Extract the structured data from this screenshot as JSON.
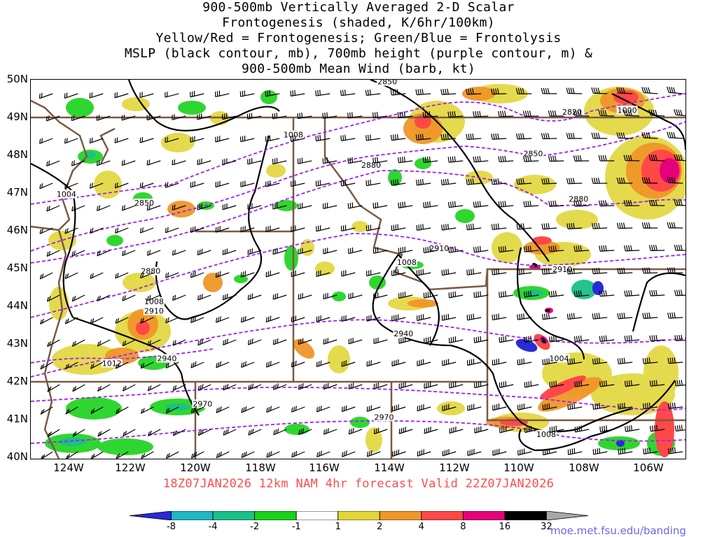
{
  "title_lines": [
    "900-500mb Vertically Averaged 2-D Scalar",
    "Frontogenesis (shaded, K/6hr/100km)",
    "Yellow/Red = Frontogenesis;  Green/Blue = Frontolysis",
    "MSLP (black contour, mb), 700mb height (purple contour, m) &",
    "900-500mb Mean Wind (barb, kt)"
  ],
  "valid_line": "18Z07JAN2026 12km NAM 4hr forecast Valid 22Z07JAN2026",
  "credit": "moe.met.fsu.edu/banding",
  "lat_labels": [
    "50N",
    "49N",
    "48N",
    "47N",
    "46N",
    "45N",
    "44N",
    "43N",
    "42N",
    "41N",
    "40N"
  ],
  "lon_labels": [
    "124W",
    "122W",
    "120W",
    "118W",
    "116W",
    "114W",
    "112W",
    "110W",
    "108W",
    "106W"
  ],
  "map_extent": {
    "lon_min": -125.2,
    "lon_max": -105.0,
    "lat_min": 40,
    "lat_max": 50
  },
  "colorbar": {
    "labels": [
      "-8",
      "-4",
      "-2",
      "-1",
      "1",
      "2",
      "4",
      "8",
      "16",
      "32"
    ],
    "colors": [
      "#2a2ad8",
      "#1fb8c4",
      "#19c08a",
      "#1ad21a",
      "#ffffff",
      "#e2d63a",
      "#f0962a",
      "#ff4848",
      "#e6007a",
      "#000000",
      "#a8a8a8"
    ]
  },
  "pressure_labels": [
    {
      "text": "1008",
      "lon": -117.1,
      "lat": 48.55
    },
    {
      "text": "1004",
      "lon": -124.1,
      "lat": 46.98
    },
    {
      "text": "1008",
      "lon": -113.6,
      "lat": 45.18
    },
    {
      "text": "1008",
      "lon": -121.4,
      "lat": 44.15
    },
    {
      "text": "1012",
      "lon": -122.7,
      "lat": 42.52
    },
    {
      "text": "1004",
      "lon": -108.9,
      "lat": 42.65
    },
    {
      "text": "1008",
      "lon": -109.3,
      "lat": 40.65
    },
    {
      "text": "1000",
      "lon": -106.8,
      "lat": 49.2
    }
  ],
  "height_labels": [
    {
      "text": "2850",
      "lon": -114.2,
      "lat": 49.95
    },
    {
      "text": "2820",
      "lon": -108.5,
      "lat": 49.15
    },
    {
      "text": "2850",
      "lon": -109.7,
      "lat": 48.05
    },
    {
      "text": "2880",
      "lon": -114.7,
      "lat": 47.75
    },
    {
      "text": "2850",
      "lon": -121.7,
      "lat": 46.75
    },
    {
      "text": "2880",
      "lon": -108.3,
      "lat": 46.85
    },
    {
      "text": "2910",
      "lon": -112.6,
      "lat": 45.55
    },
    {
      "text": "2880",
      "lon": -121.5,
      "lat": 44.95
    },
    {
      "text": "2910",
      "lon": -121.4,
      "lat": 43.9
    },
    {
      "text": "2910",
      "lon": -108.8,
      "lat": 45.0
    },
    {
      "text": "2940",
      "lon": -113.7,
      "lat": 43.3
    },
    {
      "text": "2940",
      "lon": -121.0,
      "lat": 42.65
    },
    {
      "text": "2970",
      "lon": -119.9,
      "lat": 41.45
    },
    {
      "text": "2970",
      "lon": -114.3,
      "lat": 41.1
    }
  ]
}
